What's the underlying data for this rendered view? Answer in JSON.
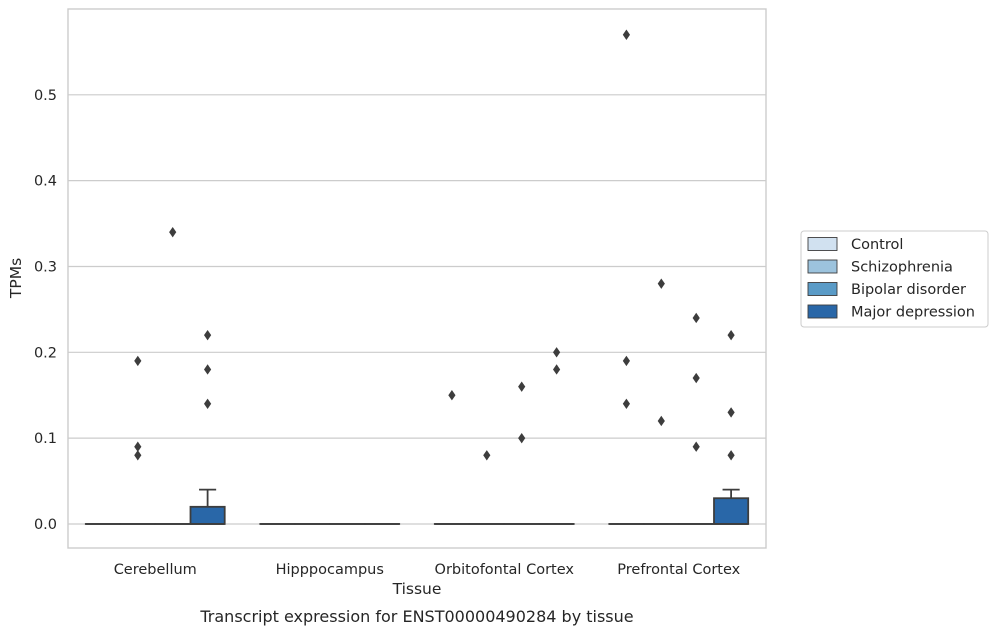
{
  "chart_data": {
    "type": "box",
    "title": "",
    "caption": "Transcript expression for ENST00000490284 by tissue",
    "xlabel": "Tissue",
    "ylabel": "TPMs",
    "ylim": [
      -0.028,
      0.6
    ],
    "yticks": [
      0.0,
      0.1,
      0.2,
      0.3,
      0.4,
      0.5
    ],
    "ytick_labels": [
      "0.0",
      "0.1",
      "0.2",
      "0.3",
      "0.4",
      "0.5"
    ],
    "grid": "horizontal",
    "legend_position": "right",
    "categories": [
      "Cerebellum",
      "Hipppocampus",
      "Orbitofontal Cortex",
      "Prefrontal Cortex"
    ],
    "series": [
      {
        "name": "Control",
        "color": "#d1e1f0",
        "boxes": [
          {
            "q1": 0,
            "median": 0,
            "q3": 0,
            "whisker_low": 0,
            "whisker_high": 0,
            "outliers": []
          },
          {
            "q1": 0,
            "median": 0,
            "q3": 0,
            "whisker_low": 0,
            "whisker_high": 0,
            "outliers": []
          },
          {
            "q1": 0,
            "median": 0,
            "q3": 0,
            "whisker_low": 0,
            "whisker_high": 0,
            "outliers": [
              0.15
            ]
          },
          {
            "q1": 0,
            "median": 0,
            "q3": 0,
            "whisker_low": 0,
            "whisker_high": 0,
            "outliers": [
              0.57,
              0.19,
              0.14
            ]
          }
        ]
      },
      {
        "name": "Schizophrenia",
        "color": "#9cc3dd",
        "boxes": [
          {
            "q1": 0,
            "median": 0,
            "q3": 0,
            "whisker_low": 0,
            "whisker_high": 0,
            "outliers": [
              0.19,
              0.09,
              0.08
            ]
          },
          {
            "q1": 0,
            "median": 0,
            "q3": 0,
            "whisker_low": 0,
            "whisker_high": 0,
            "outliers": []
          },
          {
            "q1": 0,
            "median": 0,
            "q3": 0,
            "whisker_low": 0,
            "whisker_high": 0,
            "outliers": [
              0.08
            ]
          },
          {
            "q1": 0,
            "median": 0,
            "q3": 0,
            "whisker_low": 0,
            "whisker_high": 0,
            "outliers": [
              0.28,
              0.12
            ]
          }
        ]
      },
      {
        "name": "Bipolar disorder",
        "color": "#5a9bc7",
        "boxes": [
          {
            "q1": 0,
            "median": 0,
            "q3": 0,
            "whisker_low": 0,
            "whisker_high": 0,
            "outliers": [
              0.34
            ]
          },
          {
            "q1": 0,
            "median": 0,
            "q3": 0,
            "whisker_low": 0,
            "whisker_high": 0,
            "outliers": []
          },
          {
            "q1": 0,
            "median": 0,
            "q3": 0,
            "whisker_low": 0,
            "whisker_high": 0,
            "outliers": [
              0.16,
              0.1
            ]
          },
          {
            "q1": 0,
            "median": 0,
            "q3": 0,
            "whisker_low": 0,
            "whisker_high": 0,
            "outliers": [
              0.24,
              0.17,
              0.09
            ]
          }
        ]
      },
      {
        "name": "Major depression",
        "color": "#2967a8",
        "boxes": [
          {
            "q1": 0,
            "median": 0,
            "q3": 0.02,
            "whisker_low": 0,
            "whisker_high": 0.04,
            "outliers": [
              0.22,
              0.18,
              0.14
            ]
          },
          {
            "q1": 0,
            "median": 0,
            "q3": 0,
            "whisker_low": 0,
            "whisker_high": 0,
            "outliers": []
          },
          {
            "q1": 0,
            "median": 0,
            "q3": 0,
            "whisker_low": 0,
            "whisker_high": 0,
            "outliers": [
              0.2,
              0.18
            ]
          },
          {
            "q1": 0,
            "median": 0,
            "q3": 0.03,
            "whisker_low": 0,
            "whisker_high": 0.04,
            "outliers": [
              0.22,
              0.13,
              0.08
            ]
          }
        ]
      }
    ]
  }
}
